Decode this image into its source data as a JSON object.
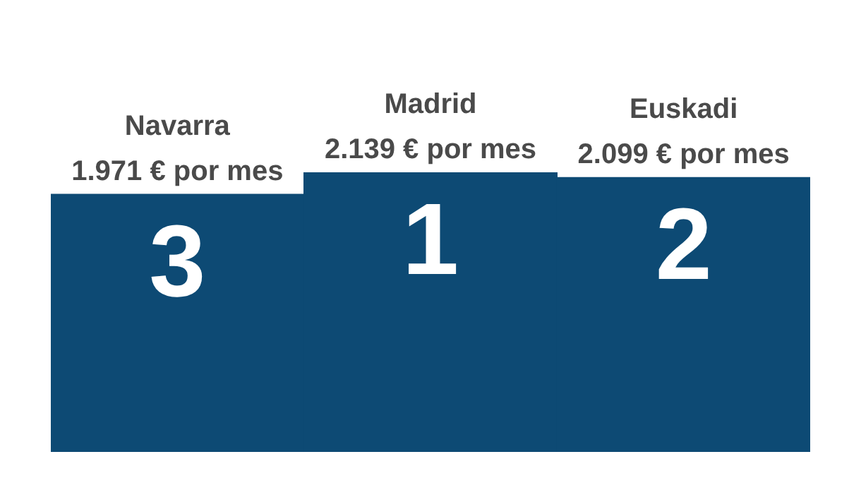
{
  "chart_data": {
    "type": "bar",
    "categories": [
      "Navarra",
      "Madrid",
      "Euskadi"
    ],
    "values": [
      1971,
      2139,
      2099
    ],
    "value_labels": [
      "1.971 € por mes",
      "2.139 € por mes",
      "2.099 € por mes"
    ],
    "color": "#0d4a74",
    "annotations": [
      "3",
      "1",
      "2"
    ]
  }
}
